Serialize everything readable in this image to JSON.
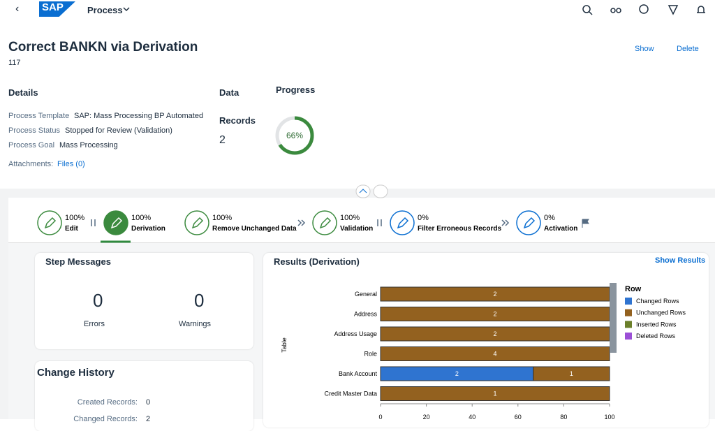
{
  "header": {
    "logo": "SAP",
    "app": "Process"
  },
  "object": {
    "title": "Correct BANKN via Derivation",
    "id": "117",
    "actions": [
      "Show",
      "Delete"
    ]
  },
  "details": {
    "heading": "Details",
    "fields": [
      {
        "label": "Process Template",
        "value": "SAP: Mass Processing BP Automated"
      },
      {
        "label": "Process Status",
        "value": "Stopped for Review (Validation)"
      },
      {
        "label": "Process Goal",
        "value": "Mass Processing"
      }
    ],
    "attachments": {
      "label": "Attachments:",
      "value": "Files (0)"
    }
  },
  "data": {
    "heading": "Data",
    "records_label": "Records",
    "records": 2
  },
  "progress": {
    "heading": "Progress",
    "value": 66,
    "value_label": "66%"
  },
  "steps": [
    {
      "percent": "100%",
      "name": "Edit"
    },
    {
      "percent": "100%",
      "name": "Derivation"
    },
    {
      "percent": "100%",
      "name": "Remove Unchanged Data"
    },
    {
      "percent": "100%",
      "name": "Validation"
    },
    {
      "percent": "0%",
      "name": "Filter Erroneous Records"
    },
    {
      "percent": "0%",
      "name": "Activation"
    }
  ],
  "step_messages": {
    "title": "Step Messages",
    "errors": 0,
    "errors_label": "Errors",
    "warnings": 0,
    "warnings_label": "Warnings"
  },
  "change_history": {
    "title": "Change History",
    "rows": [
      {
        "label": "Created Records:",
        "value": 0
      },
      {
        "label": "Changed Records:",
        "value": 2
      }
    ]
  },
  "results": {
    "title": "Results (Derivation)",
    "link": "Show Results"
  },
  "chart_data": {
    "type": "stacked-bar-horizontal",
    "y_label": "Table",
    "legend_title": "Row",
    "legend": "right",
    "categories": [
      "General",
      "Address",
      "Address Usage",
      "Role",
      "Bank Account",
      "Credit Master Data"
    ],
    "series": [
      {
        "name": "Changed Rows",
        "color": "#2f74d0",
        "values": [
          0,
          0,
          0,
          0,
          66.7,
          0
        ],
        "counts": [
          null,
          null,
          null,
          null,
          2,
          null
        ]
      },
      {
        "name": "Unchanged Rows",
        "color": "#93611f",
        "values": [
          100,
          100,
          100,
          100,
          33.3,
          100
        ],
        "counts": [
          2,
          2,
          2,
          4,
          1,
          1
        ]
      },
      {
        "name": "Inserted Rows",
        "color": "#6b7f2a",
        "values": [
          0,
          0,
          0,
          0,
          0,
          0
        ],
        "counts": [
          null,
          null,
          null,
          null,
          null,
          null
        ]
      },
      {
        "name": "Deleted Rows",
        "color": "#9b4fd6",
        "values": [
          0,
          0,
          0,
          0,
          0,
          0
        ],
        "counts": [
          null,
          null,
          null,
          null,
          null,
          null
        ]
      }
    ],
    "xlim": [
      0,
      100
    ],
    "xticks": [
      0,
      20,
      40,
      60,
      80,
      100
    ]
  }
}
